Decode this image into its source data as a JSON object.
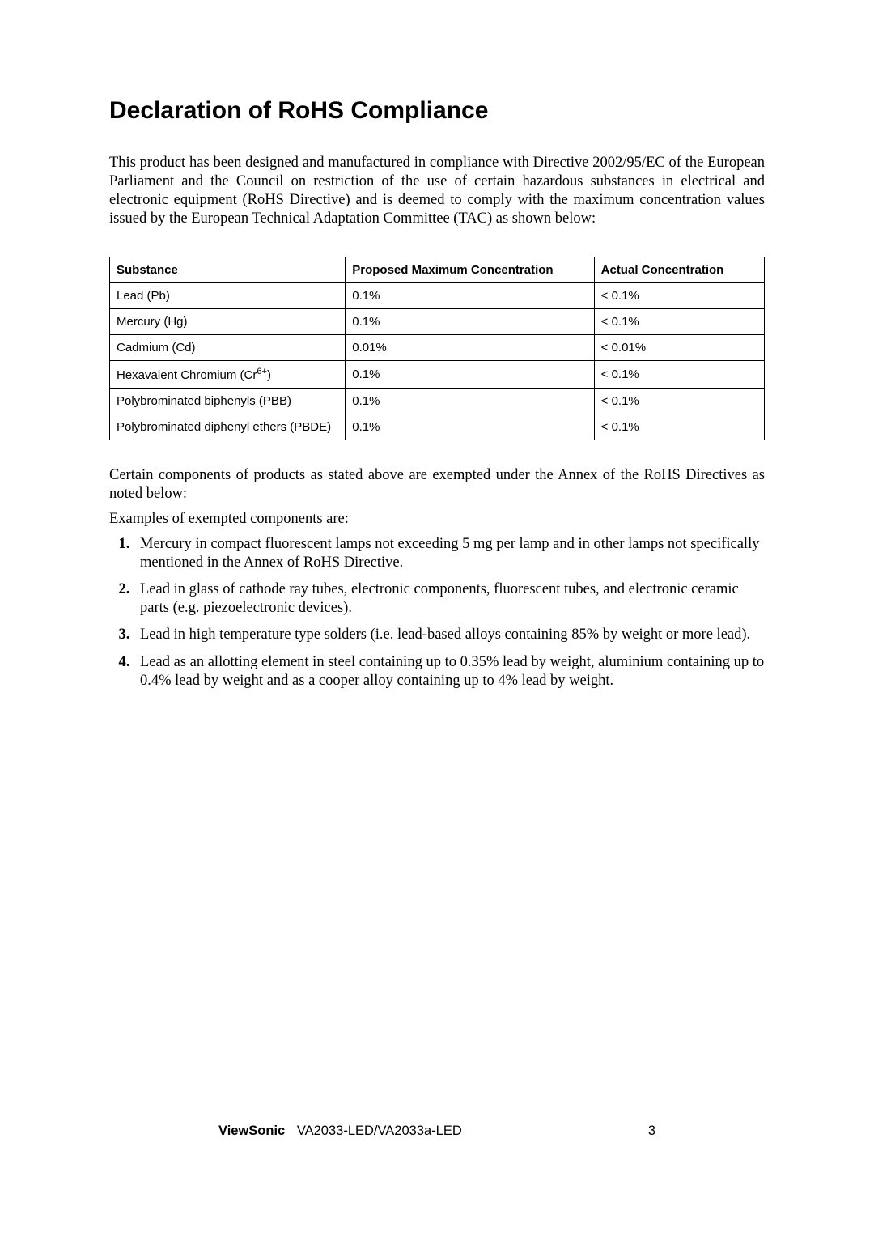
{
  "title": "Declaration of RoHS Compliance",
  "intro": "This product has been designed and manufactured in compliance with Directive 2002/95/EC of the European Parliament and the Council on restriction of the use of certain hazardous substances in electrical and electronic equipment (RoHS Directive) and is deemed to comply with the maximum concentration values issued by the European Technical Adaptation Committee (TAC) as shown below:",
  "table": {
    "headers": [
      "Substance",
      "Proposed Maximum Concentration",
      "Actual Concentration"
    ],
    "rows": [
      [
        "Lead (Pb)",
        "0.1%",
        "< 0.1%"
      ],
      [
        "Mercury (Hg)",
        "0.1%",
        "< 0.1%"
      ],
      [
        "Cadmium (Cd)",
        "0.01%",
        "< 0.01%"
      ],
      [
        "Hexavalent Chromium (Cr",
        "0.1%",
        "< 0.1%"
      ],
      [
        "Polybrominated biphenyls (PBB)",
        "0.1%",
        "< 0.1%"
      ],
      [
        "Polybrominated diphenyl ethers (PBDE)",
        "0.1%",
        "< 0.1%"
      ]
    ],
    "cr_sup": "6+",
    "cr_close": ")"
  },
  "para1": "Certain components of products as stated above are exempted under the Annex of the RoHS Directives as noted below:",
  "para2": "Examples of exempted components are:",
  "list": [
    "Mercury in compact fluorescent lamps not exceeding 5 mg per lamp and in other lamps not specifically mentioned in the Annex of RoHS Directive.",
    "Lead in glass of cathode ray tubes, electronic components, fluorescent tubes, and electronic ceramic parts (e.g. piezoelectronic devices).",
    "Lead in high temperature type solders (i.e. lead-based alloys containing 85% by weight or more lead).",
    "Lead as an allotting element in steel containing up to 0.35% lead by weight, aluminium containing up to 0.4% lead by weight and as a cooper alloy containing up to 4% lead by weight."
  ],
  "footer": {
    "brand": "ViewSonic",
    "model": "VA2033-LED/VA2033a-LED",
    "page": "3"
  }
}
